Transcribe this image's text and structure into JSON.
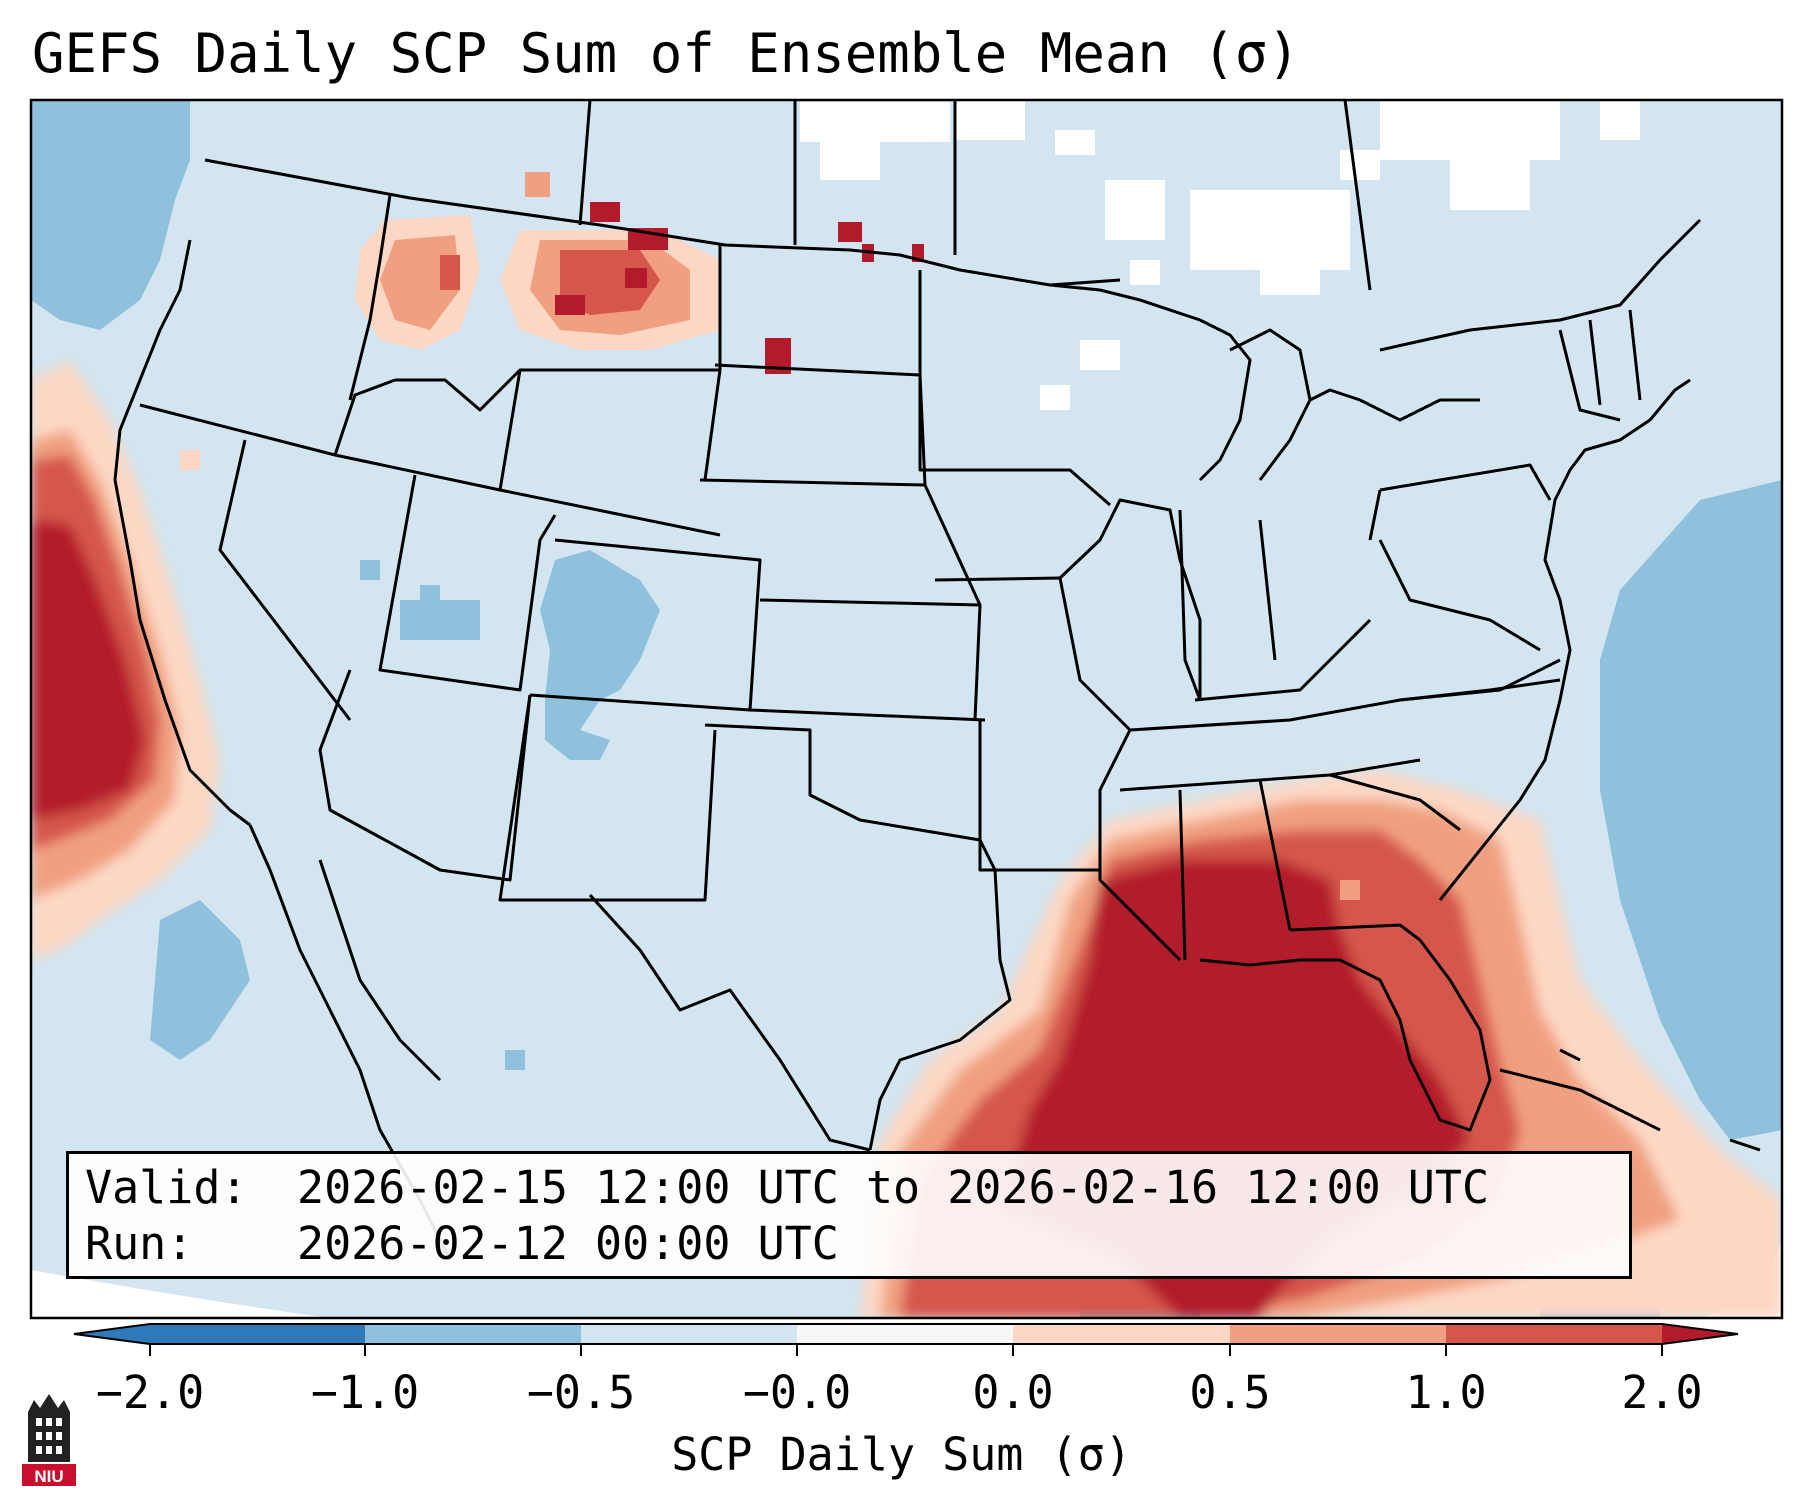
{
  "title": "GEFS Daily SCP Sum of Ensemble Mean (σ)",
  "info": {
    "valid_label": "Valid:",
    "valid_value": "2026-02-15 12:00 UTC to 2026-02-16 12:00 UTC",
    "run_label": "Run:",
    "run_value": "2026-02-12 00:00 UTC"
  },
  "colorbar": {
    "label": "SCP Daily Sum (σ)",
    "ticks": [
      "−2.0",
      "−1.0",
      "−0.5",
      "−0.0",
      "0.0",
      "0.5",
      "1.0",
      "2.0"
    ],
    "colors": [
      "#2f79b9",
      "#8fc1dd",
      "#d2e5f0",
      "#f7f7f7",
      "#fcd8c4",
      "#f0a080",
      "#d5574b",
      "#b31b2c"
    ],
    "under_color": "#2f79b9",
    "over_color": "#b31b2c"
  },
  "map": {
    "ocean_color": "#d2e5f0",
    "projection_edge_color": "#ffffff"
  },
  "logo": {
    "text": "NIU",
    "color": "#c8102e"
  }
}
